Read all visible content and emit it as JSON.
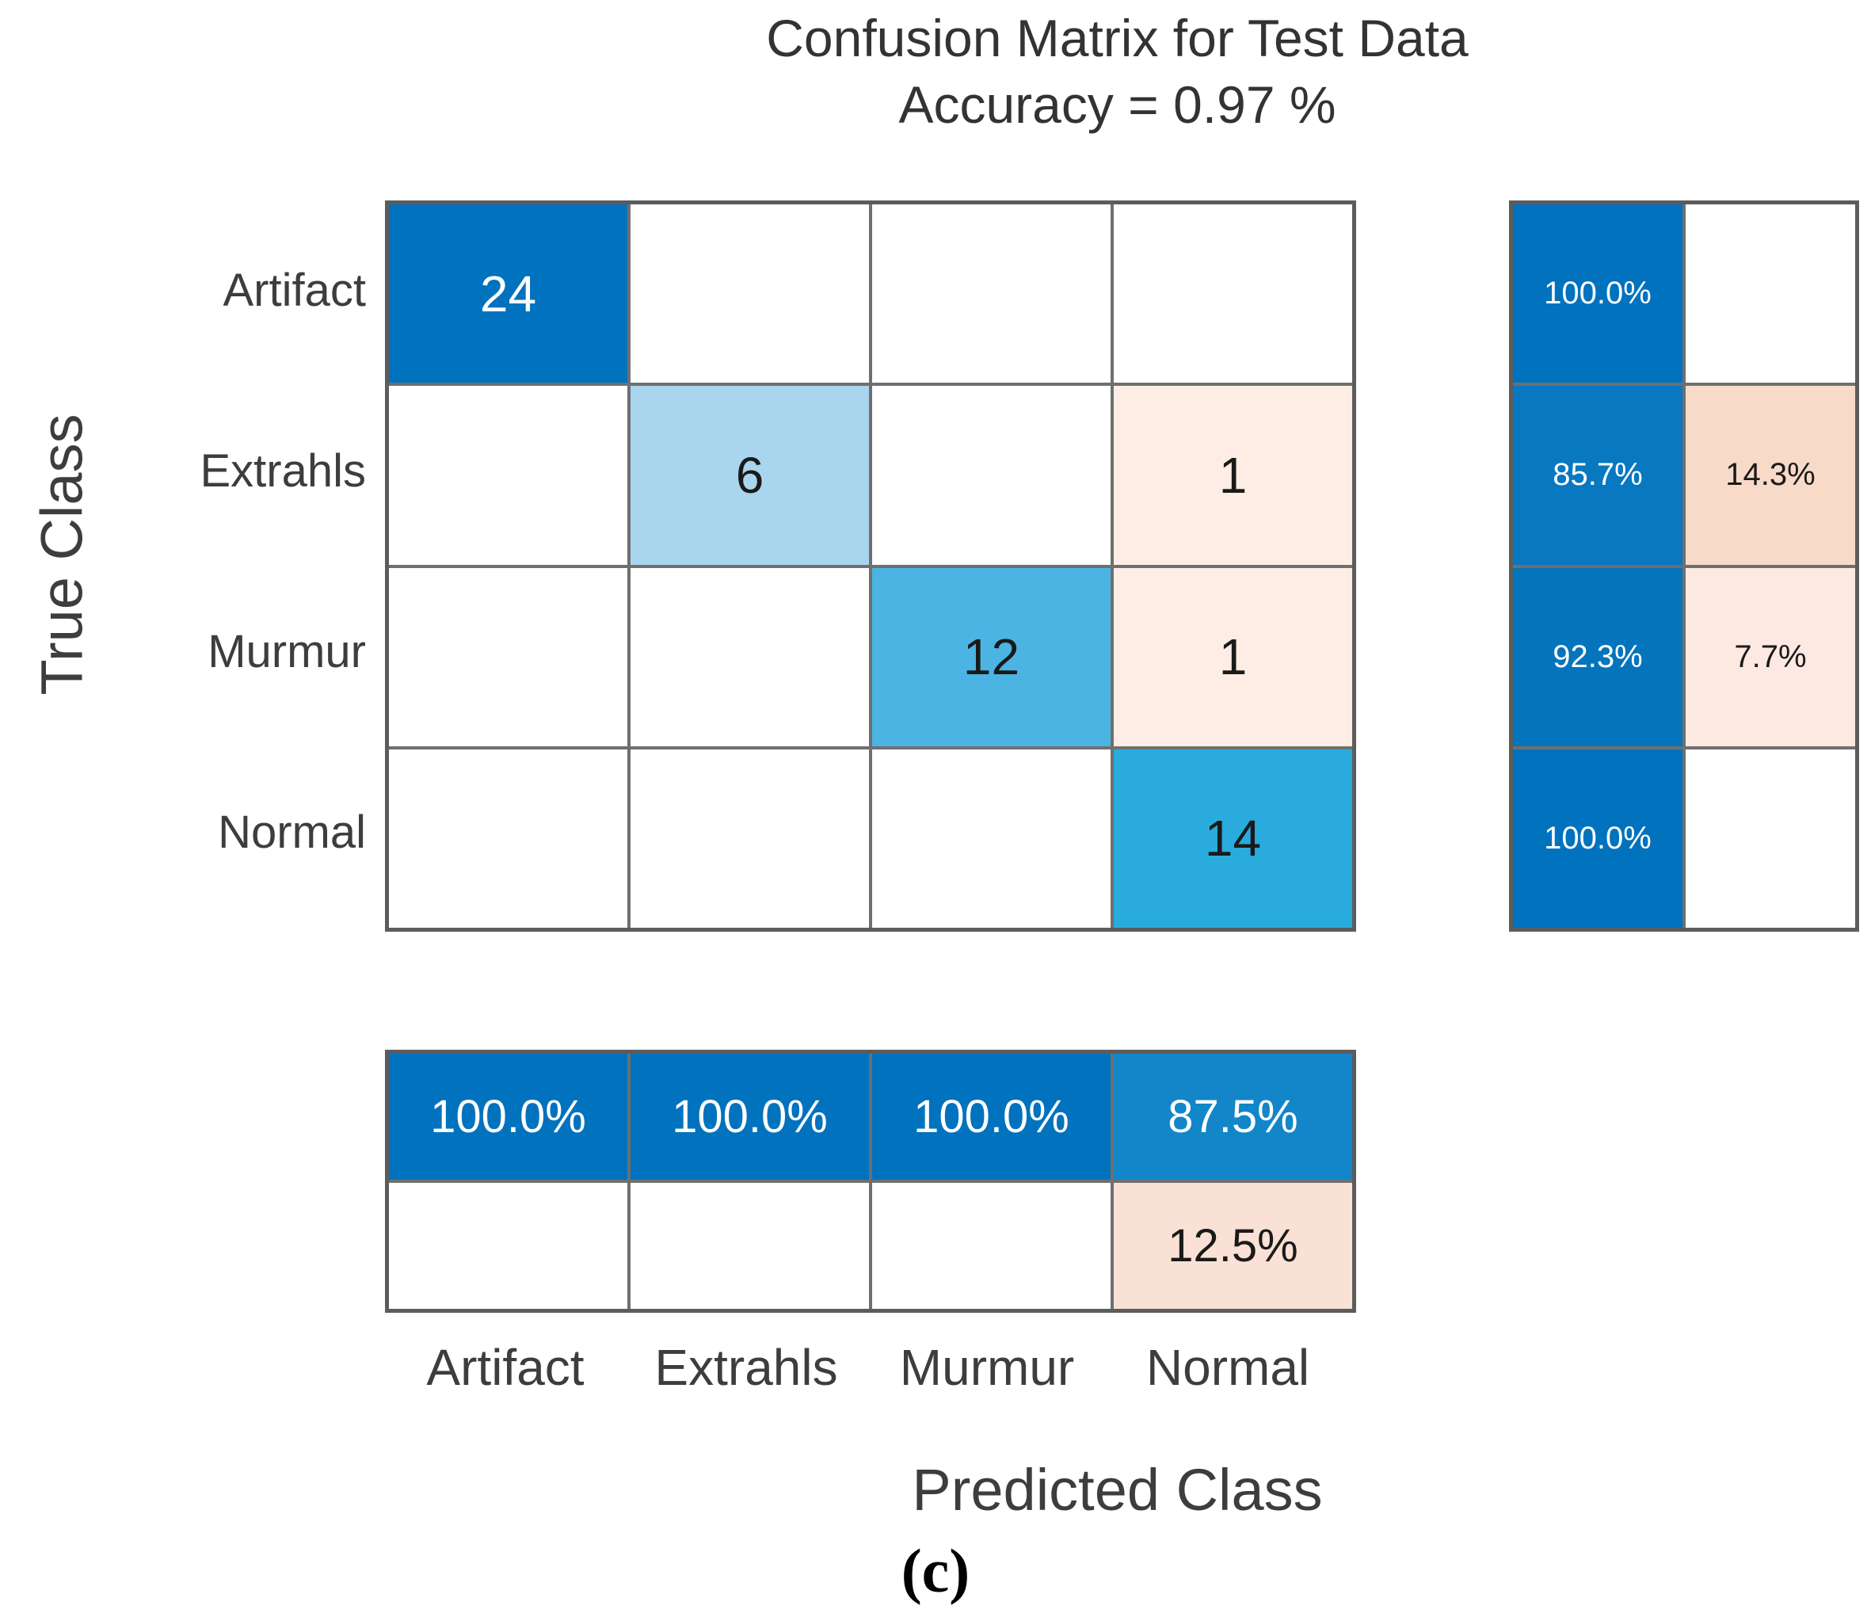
{
  "title": {
    "line1": "Confusion Matrix for Test Data",
    "line2": "Accuracy = 0.97 %"
  },
  "axes": {
    "y_label": "True Class",
    "x_label": "Predicted Class",
    "row_ticks": [
      "Artifact",
      "Extrahls",
      "Murmur",
      "Normal"
    ],
    "col_ticks": [
      "Artifact",
      "Extrahls",
      "Murmur",
      "Normal"
    ]
  },
  "caption": "(c)",
  "colors": {
    "diag_dark_blue": "#0072BE",
    "diag_light_blue": "#A9D6EE",
    "diag_mid_blue": "#4BB4E3",
    "diag_mid_dark_blue": "#29ABDE",
    "offdiag_pink": "#FDEDE5",
    "summary_blue": "#0072BE",
    "summary_pink_strong": "#F8DAC8",
    "summary_pink_light": "#FEE9E2",
    "summary_pink_mid": "#FAE1D5",
    "grid_line": "#6f6f6f"
  },
  "matrix": {
    "cells": [
      [
        {
          "v": "24",
          "bg": "#0072BE",
          "fg": "#ffffff"
        },
        {
          "v": "",
          "bg": "#ffffff",
          "fg": "#1a1a1a"
        },
        {
          "v": "",
          "bg": "#ffffff",
          "fg": "#1a1a1a"
        },
        {
          "v": "",
          "bg": "#ffffff",
          "fg": "#1a1a1a"
        }
      ],
      [
        {
          "v": "",
          "bg": "#ffffff",
          "fg": "#1a1a1a"
        },
        {
          "v": "6",
          "bg": "#A9D6EE",
          "fg": "#1a1a1a"
        },
        {
          "v": "",
          "bg": "#ffffff",
          "fg": "#1a1a1a"
        },
        {
          "v": "1",
          "bg": "#FDEDE5",
          "fg": "#1a1a1a"
        }
      ],
      [
        {
          "v": "",
          "bg": "#ffffff",
          "fg": "#1a1a1a"
        },
        {
          "v": "",
          "bg": "#ffffff",
          "fg": "#1a1a1a"
        },
        {
          "v": "12",
          "bg": "#4BB4E3",
          "fg": "#1a1a1a"
        },
        {
          "v": "1",
          "bg": "#FDEDE5",
          "fg": "#1a1a1a"
        }
      ],
      [
        {
          "v": "",
          "bg": "#ffffff",
          "fg": "#1a1a1a"
        },
        {
          "v": "",
          "bg": "#ffffff",
          "fg": "#1a1a1a"
        },
        {
          "v": "",
          "bg": "#ffffff",
          "fg": "#1a1a1a"
        },
        {
          "v": "14",
          "bg": "#29ABDE",
          "fg": "#1a1a1a"
        }
      ]
    ]
  },
  "row_summary": {
    "cells": [
      [
        {
          "v": "100.0%",
          "bg": "#0072BE",
          "fg": "#ffffff"
        },
        {
          "v": "",
          "bg": "#ffffff",
          "fg": "#1a1a1a"
        }
      ],
      [
        {
          "v": "85.7%",
          "bg": "#0878C0",
          "fg": "#ffffff"
        },
        {
          "v": "14.3%",
          "bg": "#F8DAC8",
          "fg": "#1a1a1a"
        }
      ],
      [
        {
          "v": "92.3%",
          "bg": "#0474BD",
          "fg": "#ffffff"
        },
        {
          "v": "7.7%",
          "bg": "#FEE9E2",
          "fg": "#1a1a1a"
        }
      ],
      [
        {
          "v": "100.0%",
          "bg": "#0072BE",
          "fg": "#ffffff"
        },
        {
          "v": "",
          "bg": "#ffffff",
          "fg": "#1a1a1a"
        }
      ]
    ]
  },
  "col_summary": {
    "cells": [
      [
        {
          "v": "100.0%",
          "bg": "#0072BE",
          "fg": "#ffffff"
        },
        {
          "v": "100.0%",
          "bg": "#0072BE",
          "fg": "#ffffff"
        },
        {
          "v": "100.0%",
          "bg": "#0072BE",
          "fg": "#ffffff"
        },
        {
          "v": "87.5%",
          "bg": "#1286C9",
          "fg": "#ffffff"
        }
      ],
      [
        {
          "v": "",
          "bg": "#ffffff",
          "fg": "#1a1a1a"
        },
        {
          "v": "",
          "bg": "#ffffff",
          "fg": "#1a1a1a"
        },
        {
          "v": "",
          "bg": "#ffffff",
          "fg": "#1a1a1a"
        },
        {
          "v": "12.5%",
          "bg": "#FAE1D5",
          "fg": "#1a1a1a"
        }
      ]
    ]
  },
  "chart_data": {
    "type": "heatmap",
    "title": "Confusion Matrix for Test Data",
    "subtitle": "Accuracy = 0.97 %",
    "xlabel": "Predicted Class",
    "ylabel": "True Class",
    "classes": [
      "Artifact",
      "Extrahls",
      "Murmur",
      "Normal"
    ],
    "matrix": [
      [
        24,
        0,
        0,
        0
      ],
      [
        0,
        6,
        0,
        1
      ],
      [
        0,
        0,
        12,
        1
      ],
      [
        0,
        0,
        0,
        14
      ]
    ],
    "row_summary_pct_correct": [
      100.0,
      85.7,
      92.3,
      100.0
    ],
    "row_summary_pct_incorrect": [
      0,
      14.3,
      7.7,
      0
    ],
    "col_summary_pct_correct": [
      100.0,
      100.0,
      100.0,
      87.5
    ],
    "col_summary_pct_incorrect": [
      0,
      0,
      0,
      12.5
    ],
    "legend_position": "none",
    "grid": true,
    "caption": "(c)"
  },
  "ticks": {
    "row0": "Artifact",
    "row1": "Extrahls",
    "row2": "Murmur",
    "row3": "Normal",
    "col0": "Artifact",
    "col1": "Extrahls",
    "col2": "Murmur",
    "col3": "Normal"
  }
}
